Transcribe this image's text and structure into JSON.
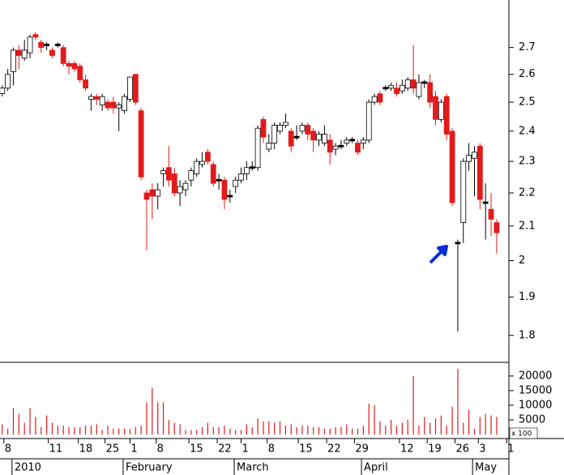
{
  "chart_data": [
    {
      "type": "candlestick",
      "log_scale": true,
      "up_color": "#ffffff",
      "down_color": "#e31a1c",
      "flat_color": "#000000",
      "open": [
        2.53,
        2.55,
        2.61,
        2.69,
        2.66,
        2.68,
        2.75,
        2.72,
        2.71,
        2.69,
        2.71,
        2.7,
        2.64,
        2.64,
        2.63,
        2.58,
        2.51,
        2.52,
        2.49,
        2.5,
        2.5,
        2.48,
        2.47,
        2.51,
        2.6,
        2.47,
        2.2,
        2.21,
        2.19,
        2.26,
        2.28,
        2.26,
        2.2,
        2.21,
        2.24,
        2.26,
        2.29,
        2.33,
        2.29,
        2.24,
        2.24,
        2.19,
        2.22,
        2.24,
        2.26,
        2.28,
        2.28,
        2.44,
        2.34,
        2.36,
        2.4,
        2.42,
        2.4,
        2.38,
        2.4,
        2.42,
        2.4,
        2.37,
        2.36,
        2.37,
        2.34,
        2.35,
        2.36,
        2.37,
        2.36,
        2.36,
        2.37,
        2.5,
        2.53,
        2.55,
        2.55,
        2.55,
        2.54,
        2.55,
        2.58,
        2.52,
        2.57,
        2.57,
        2.52,
        2.44,
        2.52,
        2.4,
        2.05,
        2.11,
        2.3,
        2.31,
        2.35,
        2.17,
        2.15,
        2.11
      ],
      "high": [
        2.56,
        2.62,
        2.7,
        2.71,
        2.73,
        2.75,
        2.76,
        2.73,
        2.72,
        2.7,
        2.72,
        2.71,
        2.65,
        2.65,
        2.64,
        2.6,
        2.53,
        2.53,
        2.53,
        2.51,
        2.52,
        2.5,
        2.53,
        2.59,
        2.6,
        2.48,
        2.21,
        2.23,
        2.23,
        2.28,
        2.35,
        2.28,
        2.24,
        2.24,
        2.28,
        2.31,
        2.33,
        2.34,
        2.3,
        2.26,
        2.25,
        2.21,
        2.25,
        2.28,
        2.3,
        2.3,
        2.42,
        2.45,
        2.39,
        2.43,
        2.43,
        2.46,
        2.41,
        2.42,
        2.43,
        2.43,
        2.41,
        2.4,
        2.42,
        2.39,
        2.36,
        2.37,
        2.38,
        2.38,
        2.37,
        2.38,
        2.51,
        2.53,
        2.54,
        2.56,
        2.57,
        2.57,
        2.58,
        2.59,
        2.71,
        2.6,
        2.58,
        2.6,
        2.54,
        2.51,
        2.53,
        2.41,
        2.06,
        2.31,
        2.36,
        2.35,
        2.36,
        2.23,
        2.2,
        2.12
      ],
      "low": [
        2.52,
        2.54,
        2.56,
        2.62,
        2.65,
        2.66,
        2.73,
        2.68,
        2.69,
        2.66,
        2.7,
        2.63,
        2.6,
        2.61,
        2.57,
        2.54,
        2.47,
        2.49,
        2.47,
        2.47,
        2.46,
        2.4,
        2.46,
        2.5,
        2.49,
        2.24,
        2.03,
        2.12,
        2.15,
        2.22,
        2.22,
        2.19,
        2.16,
        2.19,
        2.22,
        2.25,
        2.28,
        2.29,
        2.22,
        2.21,
        2.15,
        2.17,
        2.2,
        2.23,
        2.24,
        2.27,
        2.27,
        2.36,
        2.33,
        2.34,
        2.39,
        2.41,
        2.33,
        2.37,
        2.39,
        2.37,
        2.33,
        2.35,
        2.35,
        2.29,
        2.32,
        2.34,
        2.35,
        2.36,
        2.32,
        2.34,
        2.36,
        2.49,
        2.49,
        2.54,
        2.54,
        2.52,
        2.53,
        2.54,
        2.53,
        2.51,
        2.55,
        2.48,
        2.42,
        2.43,
        2.37,
        2.16,
        1.81,
        2.05,
        2.27,
        2.19,
        2.15,
        2.06,
        2.07,
        2.02
      ],
      "close": [
        2.55,
        2.6,
        2.69,
        2.67,
        2.69,
        2.74,
        2.74,
        2.7,
        2.71,
        2.67,
        2.71,
        2.64,
        2.63,
        2.62,
        2.58,
        2.55,
        2.52,
        2.51,
        2.52,
        2.48,
        2.48,
        2.49,
        2.52,
        2.59,
        2.5,
        2.25,
        2.18,
        2.19,
        2.21,
        2.27,
        2.24,
        2.2,
        2.22,
        2.23,
        2.27,
        2.3,
        2.3,
        2.3,
        2.23,
        2.24,
        2.18,
        2.19,
        2.24,
        2.26,
        2.28,
        2.28,
        2.41,
        2.38,
        2.36,
        2.42,
        2.42,
        2.43,
        2.35,
        2.38,
        2.42,
        2.39,
        2.37,
        2.39,
        2.39,
        2.33,
        2.35,
        2.35,
        2.37,
        2.37,
        2.33,
        2.37,
        2.5,
        2.52,
        2.5,
        2.55,
        2.56,
        2.53,
        2.56,
        2.58,
        2.55,
        2.57,
        2.57,
        2.5,
        2.44,
        2.5,
        2.39,
        2.17,
        2.05,
        2.3,
        2.32,
        2.33,
        2.18,
        2.17,
        2.12,
        2.08
      ],
      "xlim": [
        -0.4,
        91.2
      ],
      "ylim": [
        1.733,
        2.887
      ],
      "yticks": [
        1.8,
        1.9,
        2.0,
        2.1,
        2.2,
        2.3,
        2.4,
        2.5,
        2.6,
        2.7
      ],
      "xticks": [
        {
          "value": 0.3,
          "label": "8"
        },
        {
          "value": 8.3,
          "label": "11"
        },
        {
          "value": 13.7,
          "label": "18"
        },
        {
          "value": 18.5,
          "label": "25"
        },
        {
          "value": 23,
          "label": "1"
        },
        {
          "value": 27.7,
          "label": "8"
        },
        {
          "value": 33.6,
          "label": "15"
        },
        {
          "value": 38.7,
          "label": "22"
        },
        {
          "value": 43,
          "label": "1"
        },
        {
          "value": 47.7,
          "label": "8"
        },
        {
          "value": 53.3,
          "label": "15"
        },
        {
          "value": 58.4,
          "label": "22"
        },
        {
          "value": 63.4,
          "label": "29"
        },
        {
          "value": 71.5,
          "label": "12"
        },
        {
          "value": 76.5,
          "label": "19"
        },
        {
          "value": 81.5,
          "label": "26"
        },
        {
          "value": 85.7,
          "label": "3"
        },
        {
          "value": 90.8,
          "label": "1"
        }
      ],
      "x_period_labels": [
        {
          "value": 2.2,
          "label": "2010"
        },
        {
          "value": 22.2,
          "label": "February"
        },
        {
          "value": 42.2,
          "label": "March"
        },
        {
          "value": 65.1,
          "label": "April"
        },
        {
          "value": 85.1,
          "label": "May"
        }
      ]
    },
    {
      "type": "bar",
      "color": "#e31a1c",
      "unit_label": "x 100",
      "values": [
        3500,
        2000,
        9000,
        7000,
        4000,
        9000,
        6000,
        2500,
        6500,
        4000,
        3000,
        3000,
        2500,
        2500,
        2500,
        3000,
        3000,
        3500,
        1500,
        3000,
        2000,
        2000,
        2000,
        1800,
        2500,
        3000,
        11000,
        16000,
        11000,
        11000,
        5000,
        4000,
        3500,
        1500,
        1500,
        1500,
        2500,
        4000,
        2500,
        2500,
        3000,
        2000,
        1500,
        1500,
        3500,
        2500,
        5500,
        4500,
        4500,
        4000,
        4500,
        3000,
        3500,
        2500,
        3000,
        3000,
        2500,
        2500,
        2000,
        2000,
        2500,
        2500,
        3500,
        2000,
        2000,
        3000,
        10500,
        10000,
        4500,
        3000,
        5000,
        3000,
        4000,
        5000,
        20000,
        3000,
        6000,
        4000,
        5500,
        6500,
        3000,
        9500,
        22500,
        4000,
        8500,
        2000,
        6000,
        7000,
        6500,
        6000
      ],
      "ylim": [
        0,
        24400
      ],
      "yticks": [
        5000,
        10000,
        15000,
        20000
      ]
    }
  ]
}
